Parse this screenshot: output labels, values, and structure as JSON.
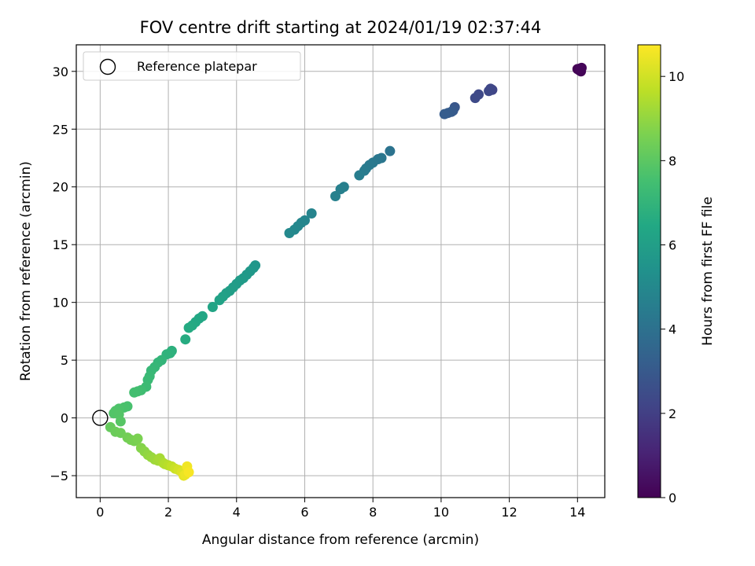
{
  "chart_data": {
    "type": "scatter",
    "title": "FOV centre drift starting at 2024/01/19 02:37:44",
    "xlabel": "Angular distance from reference (arcmin)",
    "ylabel": "Rotation from reference (arcmin)",
    "xlim": [
      -0.7,
      14.8
    ],
    "ylim": [
      -6.9,
      32.3
    ],
    "xticks": [
      0,
      2,
      4,
      6,
      8,
      10,
      12,
      14
    ],
    "yticks": [
      -5,
      0,
      5,
      10,
      15,
      20,
      25,
      30
    ],
    "grid": true,
    "legend": {
      "position": "top-left",
      "entries": [
        {
          "label": "Reference platepar",
          "marker": "open-circle"
        }
      ]
    },
    "reference_point": {
      "x": 0,
      "y": 0
    },
    "colorbar": {
      "label": "Hours from first FF file",
      "colormap": "viridis",
      "range": [
        0,
        10.75
      ],
      "ticks": [
        0,
        2,
        4,
        6,
        8,
        10
      ]
    },
    "series": [
      {
        "points": [
          [
            14.0,
            30.2,
            0.0
          ],
          [
            14.05,
            30.1,
            0.05
          ],
          [
            14.1,
            30.0,
            0.1
          ],
          [
            14.12,
            30.3,
            0.12
          ],
          [
            14.08,
            30.25,
            0.15
          ],
          [
            11.5,
            28.4,
            2.2
          ],
          [
            11.45,
            28.5,
            2.25
          ],
          [
            11.4,
            28.3,
            2.3
          ],
          [
            11.1,
            28.0,
            2.35
          ],
          [
            11.0,
            27.7,
            2.4
          ],
          [
            10.4,
            26.9,
            2.9
          ],
          [
            10.35,
            26.6,
            3.0
          ],
          [
            10.3,
            26.5,
            3.05
          ],
          [
            10.2,
            26.4,
            3.1
          ],
          [
            10.1,
            26.3,
            3.15
          ],
          [
            8.5,
            23.1,
            4.1
          ],
          [
            8.25,
            22.5,
            4.2
          ],
          [
            8.15,
            22.4,
            4.25
          ],
          [
            8.0,
            22.1,
            4.3
          ],
          [
            7.9,
            21.9,
            4.35
          ],
          [
            7.8,
            21.6,
            4.4
          ],
          [
            7.75,
            21.4,
            4.45
          ],
          [
            7.6,
            21.0,
            4.5
          ],
          [
            7.15,
            20.0,
            4.6
          ],
          [
            7.05,
            19.8,
            4.65
          ],
          [
            6.9,
            19.2,
            4.7
          ],
          [
            6.2,
            17.7,
            4.8
          ],
          [
            6.0,
            17.1,
            4.85
          ],
          [
            5.9,
            16.9,
            4.9
          ],
          [
            5.8,
            16.6,
            4.95
          ],
          [
            5.7,
            16.3,
            5.0
          ],
          [
            5.55,
            16.0,
            5.05
          ],
          [
            4.55,
            13.2,
            5.6
          ],
          [
            4.5,
            13.0,
            5.65
          ],
          [
            4.4,
            12.7,
            5.7
          ],
          [
            4.3,
            12.4,
            5.75
          ],
          [
            4.2,
            12.1,
            5.8
          ],
          [
            4.1,
            11.9,
            5.85
          ],
          [
            4.0,
            11.6,
            5.9
          ],
          [
            3.9,
            11.3,
            5.95
          ],
          [
            3.8,
            11.0,
            6.0
          ],
          [
            3.7,
            10.8,
            6.05
          ],
          [
            3.6,
            10.5,
            6.1
          ],
          [
            3.5,
            10.2,
            6.15
          ],
          [
            3.3,
            9.6,
            6.25
          ],
          [
            3.0,
            8.8,
            6.35
          ],
          [
            2.9,
            8.6,
            6.4
          ],
          [
            2.8,
            8.3,
            6.45
          ],
          [
            2.7,
            8.0,
            6.5
          ],
          [
            2.6,
            7.8,
            6.55
          ],
          [
            2.5,
            6.8,
            6.6
          ],
          [
            2.1,
            5.8,
            6.8
          ],
          [
            2.05,
            5.6,
            6.85
          ],
          [
            1.95,
            5.5,
            6.9
          ],
          [
            1.8,
            5.0,
            7.0
          ],
          [
            1.7,
            4.8,
            7.05
          ],
          [
            1.6,
            4.4,
            7.1
          ],
          [
            1.5,
            4.1,
            7.15
          ],
          [
            1.45,
            3.6,
            7.2
          ],
          [
            1.4,
            3.3,
            7.25
          ],
          [
            1.35,
            2.7,
            7.3
          ],
          [
            1.2,
            2.4,
            7.4
          ],
          [
            1.1,
            2.3,
            7.45
          ],
          [
            1.0,
            2.2,
            7.5
          ],
          [
            0.8,
            1.0,
            7.6
          ],
          [
            0.7,
            0.9,
            7.65
          ],
          [
            0.55,
            0.8,
            7.7
          ],
          [
            0.45,
            0.6,
            7.75
          ],
          [
            0.4,
            0.4,
            7.8
          ],
          [
            0.55,
            0.3,
            7.85
          ],
          [
            0.6,
            -0.3,
            7.9
          ],
          [
            0.3,
            -0.8,
            8.2
          ],
          [
            0.45,
            -1.2,
            8.3
          ],
          [
            0.6,
            -1.3,
            8.35
          ],
          [
            0.8,
            -1.7,
            8.45
          ],
          [
            0.9,
            -1.9,
            8.5
          ],
          [
            1.0,
            -2.0,
            8.55
          ],
          [
            1.1,
            -1.8,
            8.6
          ],
          [
            1.2,
            -2.6,
            8.75
          ],
          [
            1.3,
            -2.9,
            8.85
          ],
          [
            1.4,
            -3.2,
            8.95
          ],
          [
            1.5,
            -3.4,
            9.05
          ],
          [
            1.6,
            -3.6,
            9.15
          ],
          [
            1.7,
            -3.7,
            9.25
          ],
          [
            1.75,
            -3.5,
            9.3
          ],
          [
            1.85,
            -3.9,
            9.4
          ],
          [
            1.9,
            -4.0,
            9.5
          ],
          [
            2.0,
            -4.1,
            9.6
          ],
          [
            2.1,
            -4.2,
            9.75
          ],
          [
            2.2,
            -4.4,
            9.9
          ],
          [
            2.3,
            -4.5,
            10.05
          ],
          [
            2.4,
            -4.7,
            10.2
          ],
          [
            2.45,
            -5.0,
            10.35
          ],
          [
            2.5,
            -4.9,
            10.45
          ],
          [
            2.55,
            -4.2,
            10.55
          ],
          [
            2.6,
            -4.7,
            10.65
          ]
        ]
      }
    ]
  }
}
